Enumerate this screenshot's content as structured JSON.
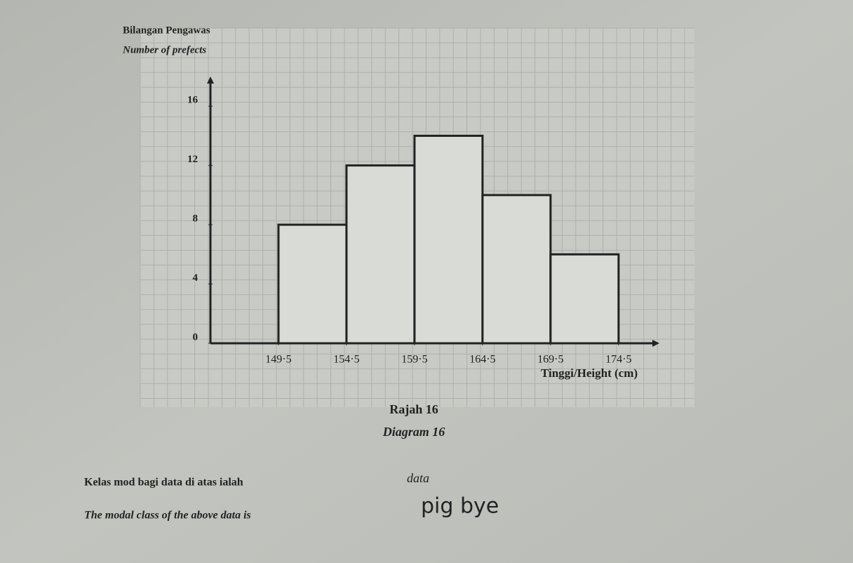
{
  "chart_data": {
    "type": "histogram",
    "y_label_lines": [
      "Bilangan Pengawas",
      "Number of prefects"
    ],
    "x_label": "Tinggi/Height (cm)",
    "caption": [
      "Rajah 16",
      "Diagram 16"
    ],
    "bins": [
      149.5,
      154.5,
      159.5,
      164.5,
      169.5,
      174.5
    ],
    "counts": [
      8,
      12,
      14,
      10,
      6
    ],
    "color": "#d9dbd6",
    "xlim": [
      144.5,
      177.5
    ],
    "xticks": [
      {
        "value": 149.5,
        "label": "149·5"
      },
      {
        "value": 154.5,
        "label": "154·5"
      },
      {
        "value": 159.5,
        "label": "159·5"
      },
      {
        "value": 164.5,
        "label": "164·5"
      },
      {
        "value": 169.5,
        "label": "169·5"
      },
      {
        "value": 174.5,
        "label": "174·5"
      }
    ],
    "ylim": [
      0,
      18
    ],
    "yticks": [
      0,
      4,
      8,
      12,
      16
    ],
    "grid": true
  },
  "question": {
    "malay": "Kelas mod bagi data di atas ialah",
    "english": "The modal class of the above data is",
    "handwriting": [
      "data",
      "pig bye"
    ]
  }
}
